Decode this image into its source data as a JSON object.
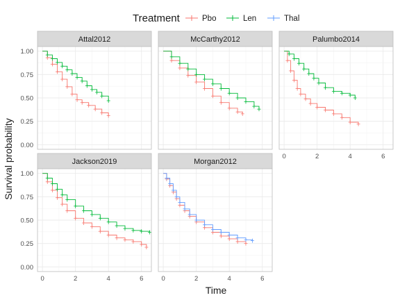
{
  "chart_data": {
    "type": "line",
    "subtype": "kaplan-meier survival curves (faceted)",
    "legend": {
      "title": "Treatment",
      "position": "top",
      "entries": [
        {
          "name": "Pbo",
          "color": "#F8766D"
        },
        {
          "name": "Len",
          "color": "#00BA38"
        },
        {
          "name": "Thal",
          "color": "#619CFF"
        }
      ]
    },
    "xlabel": "Time",
    "ylabel": "Survival probability",
    "xlim": [
      -0.3,
      6.6
    ],
    "ylim": [
      -0.05,
      1.05
    ],
    "x_ticks": [
      "0",
      "2",
      "4",
      "6"
    ],
    "y_ticks": [
      "0.00",
      "0.25",
      "0.50",
      "0.75",
      "1.00"
    ],
    "grid": true,
    "panels": [
      {
        "title": "Attal2012",
        "series": [
          {
            "name": "Pbo",
            "x": [
              0,
              0.3,
              0.6,
              0.9,
              1.2,
              1.5,
              1.8,
              2.1,
              2.4,
              2.8,
              3.2,
              3.6,
              4.0
            ],
            "y": [
              1.0,
              0.93,
              0.86,
              0.78,
              0.7,
              0.62,
              0.54,
              0.48,
              0.45,
              0.42,
              0.38,
              0.34,
              0.31
            ]
          },
          {
            "name": "Len",
            "x": [
              0,
              0.3,
              0.6,
              0.9,
              1.2,
              1.5,
              1.8,
              2.1,
              2.4,
              2.7,
              3.0,
              3.3,
              3.6,
              4.0
            ],
            "y": [
              1.0,
              0.96,
              0.92,
              0.88,
              0.84,
              0.8,
              0.76,
              0.72,
              0.68,
              0.63,
              0.59,
              0.56,
              0.52,
              0.47
            ]
          }
        ]
      },
      {
        "title": "McCarthy2012",
        "series": [
          {
            "name": "Pbo",
            "x": [
              0,
              0.5,
              1.0,
              1.5,
              2.0,
              2.5,
              3.0,
              3.5,
              4.0,
              4.5,
              4.8
            ],
            "y": [
              1.0,
              0.9,
              0.82,
              0.74,
              0.67,
              0.6,
              0.52,
              0.45,
              0.39,
              0.35,
              0.33
            ]
          },
          {
            "name": "Len",
            "x": [
              0,
              0.5,
              1.0,
              1.5,
              2.0,
              2.5,
              3.0,
              3.5,
              4.0,
              4.5,
              5.0,
              5.5,
              5.8
            ],
            "y": [
              1.0,
              0.94,
              0.87,
              0.81,
              0.75,
              0.7,
              0.65,
              0.6,
              0.55,
              0.5,
              0.46,
              0.41,
              0.38
            ]
          }
        ]
      },
      {
        "title": "Palumbo2014",
        "series": [
          {
            "name": "Pbo",
            "x": [
              0,
              0.2,
              0.4,
              0.6,
              0.8,
              1.0,
              1.3,
              1.6,
              2.0,
              2.5,
              3.0,
              3.5,
              4.0,
              4.5
            ],
            "y": [
              1.0,
              0.9,
              0.79,
              0.69,
              0.6,
              0.54,
              0.49,
              0.44,
              0.4,
              0.37,
              0.33,
              0.29,
              0.24,
              0.22
            ]
          },
          {
            "name": "Len",
            "x": [
              0,
              0.3,
              0.6,
              0.9,
              1.2,
              1.5,
              1.8,
              2.1,
              2.5,
              3.0,
              3.5,
              4.0,
              4.3
            ],
            "y": [
              1.0,
              0.97,
              0.92,
              0.87,
              0.81,
              0.76,
              0.71,
              0.66,
              0.61,
              0.57,
              0.55,
              0.53,
              0.5
            ]
          }
        ]
      },
      {
        "title": "Jackson2019",
        "series": [
          {
            "name": "Pbo",
            "x": [
              0,
              0.3,
              0.6,
              0.9,
              1.2,
              1.5,
              2.0,
              2.5,
              3.0,
              3.5,
              4.0,
              4.5,
              5.0,
              5.5,
              6.0,
              6.3
            ],
            "y": [
              1.0,
              0.91,
              0.82,
              0.74,
              0.67,
              0.6,
              0.52,
              0.47,
              0.43,
              0.38,
              0.34,
              0.31,
              0.29,
              0.27,
              0.24,
              0.21
            ]
          },
          {
            "name": "Len",
            "x": [
              0,
              0.3,
              0.6,
              0.9,
              1.2,
              1.5,
              2.0,
              2.5,
              3.0,
              3.5,
              4.0,
              4.5,
              5.0,
              5.5,
              6.0,
              6.5
            ],
            "y": [
              1.0,
              0.95,
              0.89,
              0.83,
              0.77,
              0.72,
              0.65,
              0.6,
              0.56,
              0.52,
              0.48,
              0.44,
              0.41,
              0.39,
              0.38,
              0.37
            ]
          }
        ]
      },
      {
        "title": "Morgan2012",
        "series": [
          {
            "name": "Pbo",
            "x": [
              0,
              0.2,
              0.4,
              0.6,
              0.8,
              1.0,
              1.3,
              1.6,
              2.0,
              2.5,
              3.0,
              3.5,
              4.0,
              4.5,
              5.0
            ],
            "y": [
              1.0,
              0.94,
              0.87,
              0.8,
              0.73,
              0.66,
              0.6,
              0.54,
              0.48,
              0.42,
              0.37,
              0.33,
              0.3,
              0.27,
              0.25
            ]
          },
          {
            "name": "Thal",
            "x": [
              0,
              0.2,
              0.4,
              0.6,
              0.8,
              1.0,
              1.3,
              1.6,
              2.0,
              2.5,
              3.0,
              3.5,
              4.0,
              4.5,
              5.0,
              5.4
            ],
            "y": [
              1.0,
              0.95,
              0.89,
              0.82,
              0.75,
              0.69,
              0.62,
              0.56,
              0.5,
              0.45,
              0.4,
              0.37,
              0.34,
              0.31,
              0.29,
              0.28
            ]
          }
        ]
      }
    ]
  }
}
